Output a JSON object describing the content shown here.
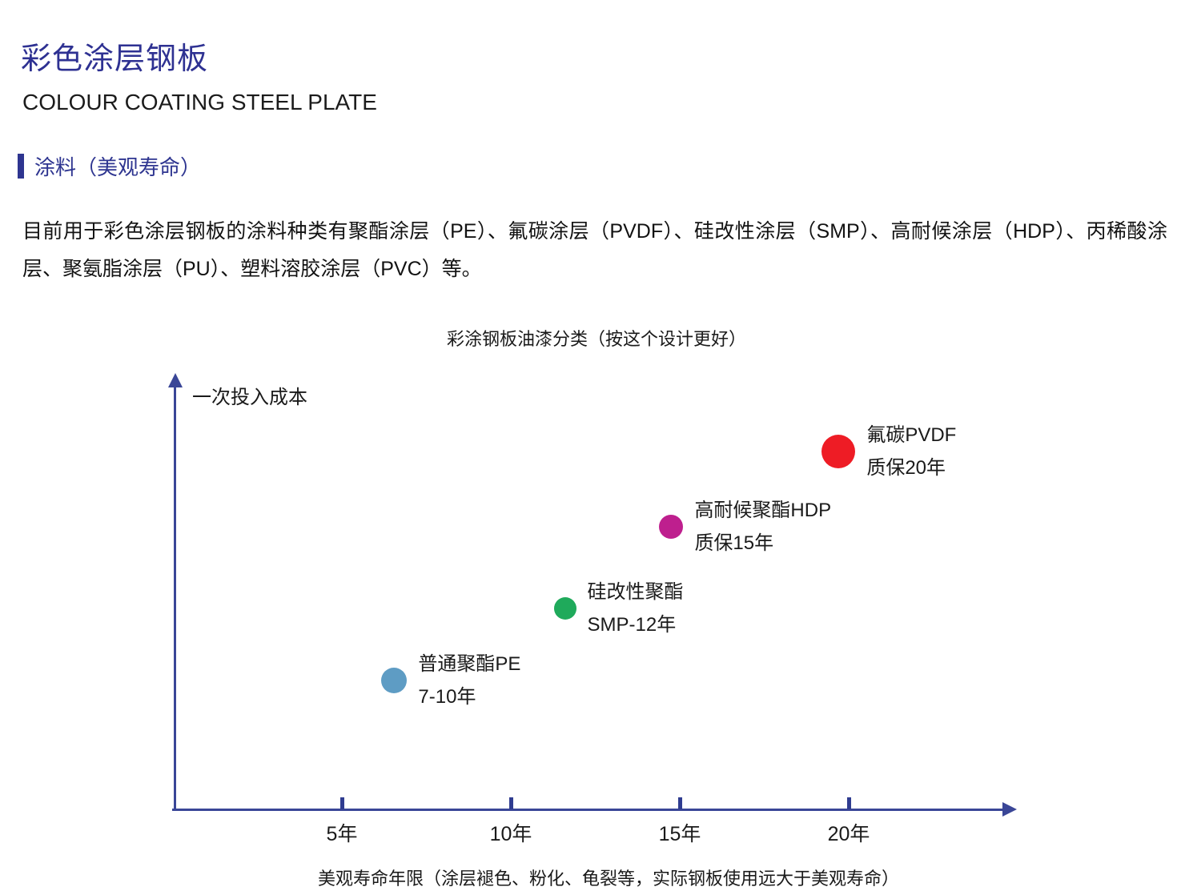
{
  "page": {
    "title": "彩色涂层钢板",
    "subtitle": "COLOUR COATING STEEL PLATE",
    "section_header": "涂料（美观寿命）",
    "paragraph": "目前用于彩色涂层钢板的涂料种类有聚酯涂层（PE）、氟碳涂层（PVDF）、硅改性涂层（SMP）、高耐候涂层（HDP）、丙稀酸涂层、聚氨脂涂层（PU）、塑料溶胶涂层（PVC）等。"
  },
  "colors": {
    "heading_navy": "#2e3192",
    "axis_navy": "#3a4697",
    "tick_navy": "#2f3c90",
    "body_text": "#1a1a1a"
  },
  "chart_data": {
    "type": "scatter",
    "title": "彩涂钢板油漆分类（按这个设计更好）",
    "xlabel": "美观寿命年限（涂层褪色、粉化、龟裂等，实际钢板使用远大于美观寿命）",
    "ylabel": "一次投入成本",
    "x_ticks": [
      "5年",
      "10年",
      "15年",
      "20年"
    ],
    "x_tick_values": [
      5,
      10,
      15,
      20
    ],
    "xlim": [
      0,
      24.5
    ],
    "grid": false,
    "legend": "none",
    "y_axis_scale": "relative cost level (unlabeled)",
    "points": [
      {
        "name": "普通聚酯PE",
        "label_line1": "普通聚酯PE",
        "label_line2": "7-10年",
        "x_years": 6.55,
        "cost_level": 1.8,
        "color": "#5e9cc4",
        "radius": 16
      },
      {
        "name": "硅改性聚酯",
        "label_line1": "硅改性聚酯",
        "label_line2": "SMP-12年",
        "x_years": 11.6,
        "cost_level": 2.8,
        "color": "#1faa5b",
        "radius": 14
      },
      {
        "name": "高耐候聚酯HDP",
        "label_line1": "高耐候聚酯HDP",
        "label_line2": "质保15年",
        "x_years": 14.75,
        "cost_level": 3.93,
        "color": "#be1f8e",
        "radius": 15
      },
      {
        "name": "氟碳PVDF",
        "label_line1": "氟碳PVDF",
        "label_line2": "质保20年",
        "x_years": 19.7,
        "cost_level": 4.98,
        "color": "#ee1c25",
        "radius": 21
      }
    ]
  }
}
